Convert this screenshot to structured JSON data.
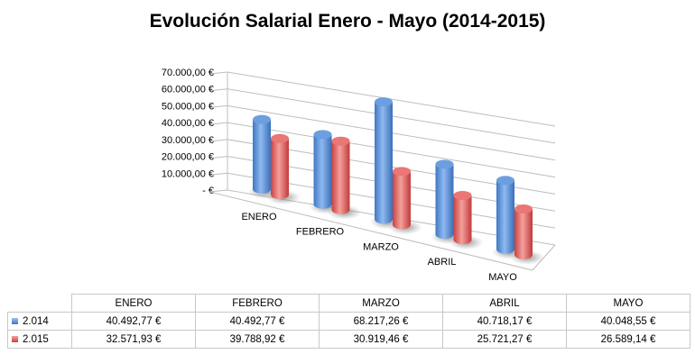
{
  "chart_data": {
    "type": "bar",
    "title": "Evolución Salarial Enero - Mayo (2014-2015)",
    "categories": [
      "ENERO",
      "FEBRERO",
      "MARZO",
      "ABRIL",
      "MAYO"
    ],
    "series": [
      {
        "name": "2.014",
        "values": [
          40492.77,
          40492.77,
          68217.26,
          40718.17,
          40048.55
        ],
        "labels": [
          "40.492,77 €",
          "40.492,77 €",
          "68.217,26 €",
          "40.718,17 €",
          "40.048,55 €"
        ],
        "color": "#5b93d8"
      },
      {
        "name": "2.015",
        "values": [
          32571.93,
          39788.92,
          30919.46,
          25721.27,
          26589.14
        ],
        "labels": [
          "32.571,93 €",
          "39.788,92 €",
          "30.919,46 €",
          "25.721,27 €",
          "26.589,14 €"
        ],
        "color": "#d9504f"
      }
    ],
    "ylim": [
      0,
      70000
    ],
    "yticks": [
      "-  €",
      "10.000,00 €",
      "20.000,00 €",
      "30.000,00 €",
      "40.000,00 €",
      "50.000,00 €",
      "60.000,00 €",
      "70.000,00 €"
    ],
    "grid": true,
    "style": "3d-cylinder",
    "legend": "data-table"
  }
}
